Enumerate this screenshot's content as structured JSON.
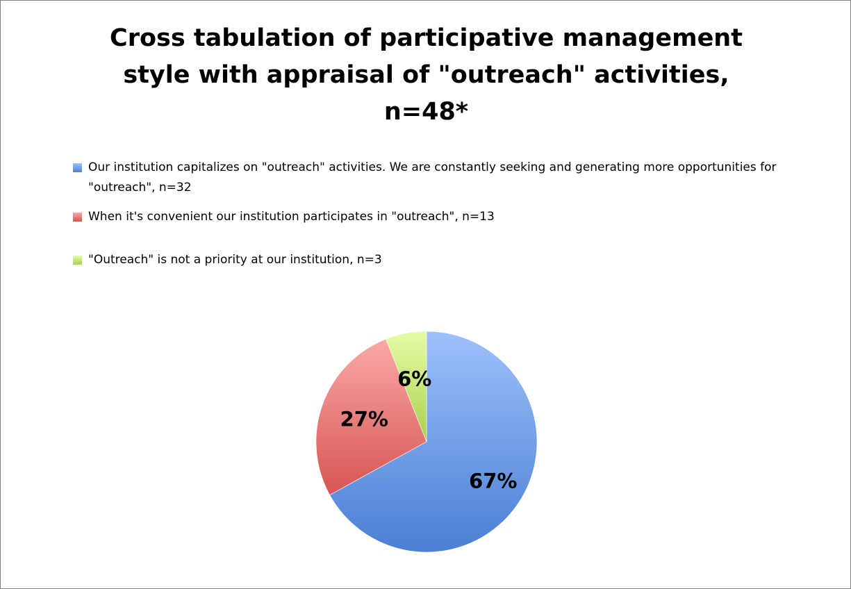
{
  "chart_data": {
    "type": "pie",
    "title": "Cross tabulation of participative management style with appraisal of \"outreach\" activities, n=48*",
    "categories": [
      "Our institution capitalizes on \"outreach\" activities. We are constantly seeking and generating more opportunities for \"outreach\", n=32",
      "When it's convenient our institution participates in \"outreach\", n=13",
      "\"Outreach\" is not a priority at our institution, n=3"
    ],
    "values": [
      67,
      27,
      6
    ],
    "data_labels": [
      "67%",
      "27%",
      "6%"
    ],
    "colors": [
      "#4a7fd4",
      "#d65552",
      "#a9cf4e"
    ],
    "light_colors": [
      "#9dc1fb",
      "#faa9a7",
      "#e6fca6"
    ],
    "legend_position": "top"
  }
}
